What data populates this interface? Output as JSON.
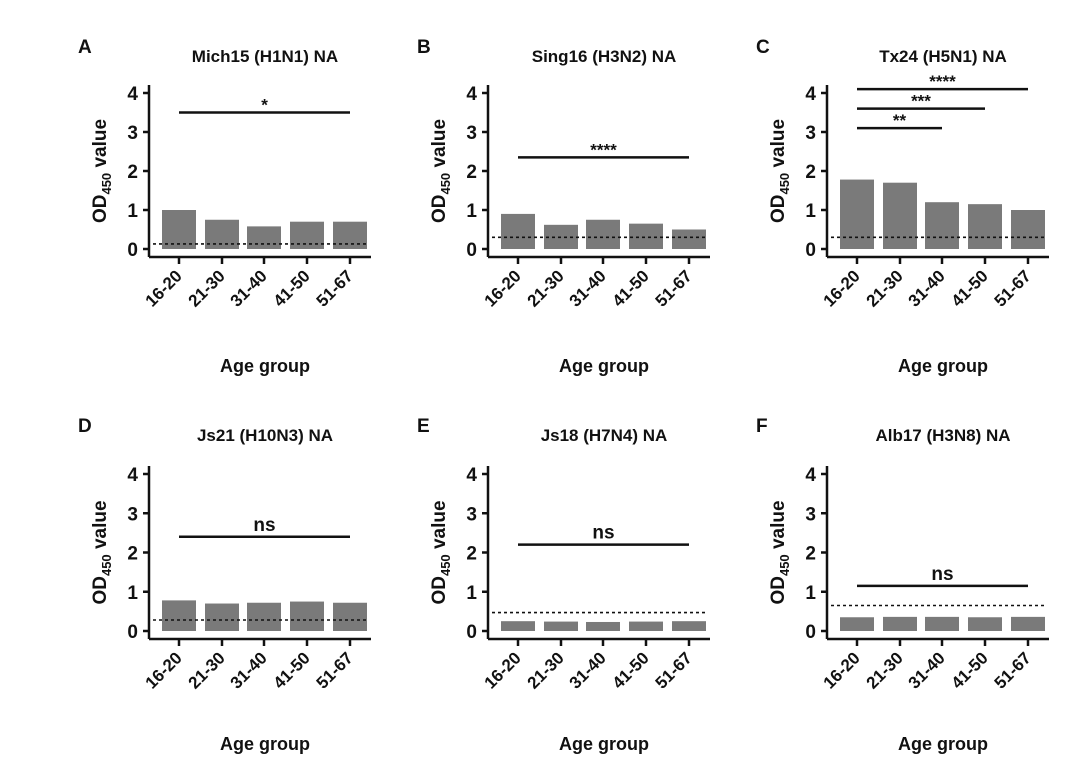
{
  "chart_data": [
    {
      "type": "bar",
      "panel": "A",
      "title": "Mich15 (H1N1) NA",
      "xlabel": "Age group",
      "ylabel": "OD450 value",
      "ylabel_main": "OD",
      "ylabel_sub": "450",
      "ylabel_rest": " value",
      "categories": [
        "16-20",
        "21-30",
        "31-40",
        "41-50",
        "51-67"
      ],
      "values": [
        1.0,
        0.75,
        0.58,
        0.7,
        0.7
      ],
      "cutoff": 0.13,
      "ylim": [
        0,
        4
      ],
      "yticks": [
        "0",
        "1",
        "2",
        "3",
        "4"
      ],
      "significance": [
        {
          "from": "16-20",
          "to": "51-67",
          "y": 3.5,
          "label": "*"
        }
      ]
    },
    {
      "type": "bar",
      "panel": "B",
      "title": "Sing16 (H3N2) NA",
      "xlabel": "Age group",
      "ylabel": "OD450 value",
      "ylabel_main": "OD",
      "ylabel_sub": "450",
      "ylabel_rest": " value",
      "categories": [
        "16-20",
        "21-30",
        "31-40",
        "41-50",
        "51-67"
      ],
      "values": [
        0.9,
        0.62,
        0.75,
        0.65,
        0.5
      ],
      "cutoff": 0.3,
      "ylim": [
        0,
        4
      ],
      "yticks": [
        "0",
        "1",
        "2",
        "3",
        "4"
      ],
      "significance": [
        {
          "from": "16-20",
          "to": "51-67",
          "y": 2.35,
          "label": "****"
        }
      ]
    },
    {
      "type": "bar",
      "panel": "C",
      "title": "Tx24 (H5N1) NA",
      "xlabel": "Age group",
      "ylabel": "OD450 value",
      "ylabel_main": "OD",
      "ylabel_sub": "450",
      "ylabel_rest": " value",
      "categories": [
        "16-20",
        "21-30",
        "31-40",
        "41-50",
        "51-67"
      ],
      "values": [
        1.78,
        1.7,
        1.2,
        1.15,
        1.0
      ],
      "cutoff": 0.3,
      "ylim": [
        0,
        4
      ],
      "yticks": [
        "0",
        "1",
        "2",
        "3",
        "4"
      ],
      "significance": [
        {
          "from": "16-20",
          "to": "31-40",
          "y": 3.1,
          "label": "**"
        },
        {
          "from": "16-20",
          "to": "41-50",
          "y": 3.6,
          "label": "***"
        },
        {
          "from": "16-20",
          "to": "51-67",
          "y": 4.1,
          "label": "****"
        }
      ]
    },
    {
      "type": "bar",
      "panel": "D",
      "title": "Js21 (H10N3) NA",
      "xlabel": "Age group",
      "ylabel": "OD450 value",
      "ylabel_main": "OD",
      "ylabel_sub": "450",
      "ylabel_rest": " value",
      "categories": [
        "16-20",
        "21-30",
        "31-40",
        "41-50",
        "51-67"
      ],
      "values": [
        0.78,
        0.7,
        0.72,
        0.75,
        0.72
      ],
      "cutoff": 0.28,
      "ylim": [
        0,
        4
      ],
      "yticks": [
        "0",
        "1",
        "2",
        "3",
        "4"
      ],
      "significance": [
        {
          "from": "16-20",
          "to": "51-67",
          "y": 2.4,
          "label": "ns"
        }
      ]
    },
    {
      "type": "bar",
      "panel": "E",
      "title": "Js18 (H7N4) NA",
      "xlabel": "Age group",
      "ylabel": "OD450 value",
      "ylabel_main": "OD",
      "ylabel_sub": "450",
      "ylabel_rest": " value",
      "categories": [
        "16-20",
        "21-30",
        "31-40",
        "41-50",
        "51-67"
      ],
      "values": [
        0.25,
        0.24,
        0.23,
        0.24,
        0.25
      ],
      "cutoff": 0.47,
      "ylim": [
        0,
        4
      ],
      "yticks": [
        "0",
        "1",
        "2",
        "3",
        "4"
      ],
      "significance": [
        {
          "from": "16-20",
          "to": "51-67",
          "y": 2.2,
          "label": "ns"
        }
      ]
    },
    {
      "type": "bar",
      "panel": "F",
      "title": "Alb17 (H3N8) NA",
      "xlabel": "Age group",
      "ylabel": "OD450 value",
      "ylabel_main": "OD",
      "ylabel_sub": "450",
      "ylabel_rest": " value",
      "categories": [
        "16-20",
        "21-30",
        "31-40",
        "41-50",
        "51-67"
      ],
      "values": [
        0.35,
        0.36,
        0.36,
        0.35,
        0.36
      ],
      "cutoff": 0.65,
      "ylim": [
        0,
        4
      ],
      "yticks": [
        "0",
        "1",
        "2",
        "3",
        "4"
      ],
      "significance": [
        {
          "from": "16-20",
          "to": "51-67",
          "y": 1.15,
          "label": "ns"
        }
      ]
    }
  ],
  "colors": {
    "bar": "#7a7a7a",
    "axis": "#111111",
    "cutoff": "#111111"
  }
}
